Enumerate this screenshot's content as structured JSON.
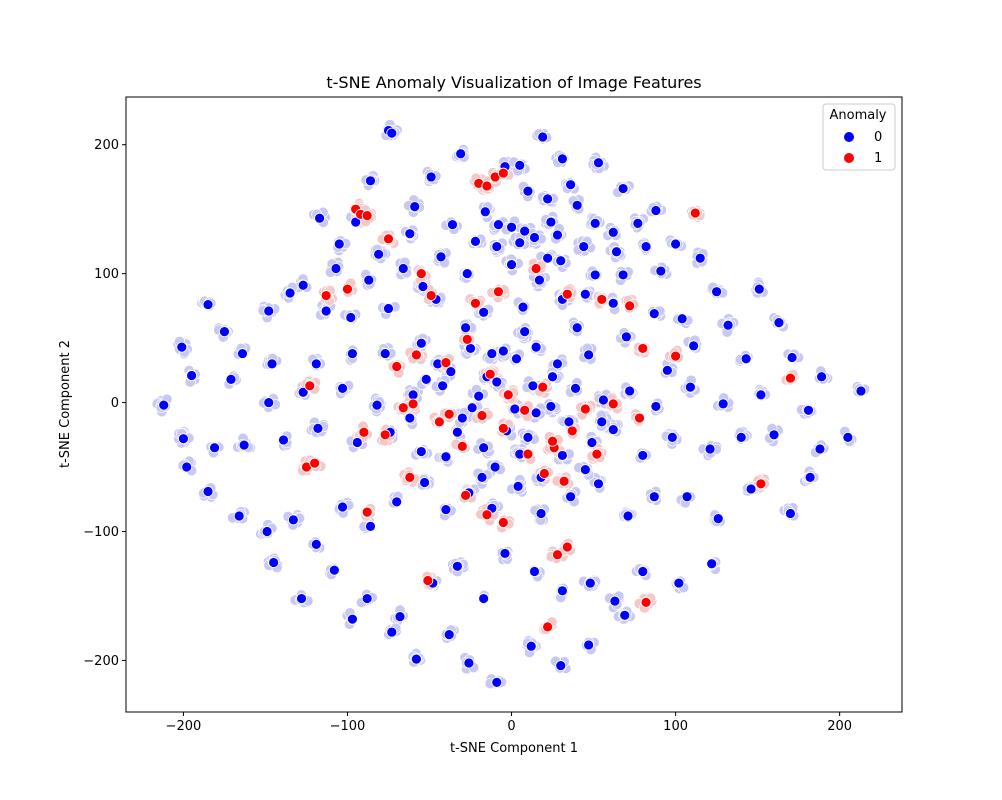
{
  "chart_data": {
    "type": "scatter",
    "title": "t-SNE Anomaly Visualization of Image Features",
    "xlabel": "t-SNE Component 1",
    "ylabel": "t-SNE Component 2",
    "xlim": [
      -235,
      238
    ],
    "ylim": [
      -240,
      237
    ],
    "xticks": [
      -200,
      -100,
      0,
      100,
      200
    ],
    "yticks": [
      -200,
      -100,
      0,
      100,
      200
    ],
    "xtick_labels": [
      "−200",
      "−100",
      "0",
      "100",
      "200"
    ],
    "ytick_labels": [
      "−200",
      "−100",
      "0",
      "100",
      "200"
    ],
    "grid": false,
    "legend": {
      "title": "Anomaly",
      "placement": "top-right",
      "entries": [
        {
          "label": "0",
          "color": "#0000ff"
        },
        {
          "label": "1",
          "color": "#ff0000"
        }
      ]
    },
    "colors": {
      "normal": "#0000ff",
      "anomaly": "#ff0000",
      "normal_halo": "#c8c8f5",
      "anomaly_halo": "#f5c8c8"
    },
    "series": [
      {
        "name": "0",
        "color": "#0000ff",
        "points": [
          [
            -75,
            211
          ],
          [
            -73,
            209
          ],
          [
            -31,
            193
          ],
          [
            19,
            206
          ],
          [
            31,
            189
          ],
          [
            53,
            186
          ],
          [
            -86,
            172
          ],
          [
            -49,
            175
          ],
          [
            -4,
            183
          ],
          [
            5,
            184
          ],
          [
            36,
            169
          ],
          [
            68,
            166
          ],
          [
            88,
            149
          ],
          [
            -59,
            152
          ],
          [
            -16,
            148
          ],
          [
            10,
            164
          ],
          [
            22,
            158
          ],
          [
            51,
            139
          ],
          [
            -117,
            143
          ],
          [
            -95,
            140
          ],
          [
            -62,
            131
          ],
          [
            -36,
            138
          ],
          [
            -22,
            125
          ],
          [
            -8,
            138
          ],
          [
            0,
            136
          ],
          [
            8,
            133
          ],
          [
            14,
            128
          ],
          [
            24,
            140
          ],
          [
            28,
            130
          ],
          [
            40,
            153
          ],
          [
            62,
            132
          ],
          [
            77,
            139
          ],
          [
            -105,
            123
          ],
          [
            -81,
            115
          ],
          [
            -43,
            113
          ],
          [
            -9,
            121
          ],
          [
            5,
            124
          ],
          [
            22,
            112
          ],
          [
            44,
            121
          ],
          [
            64,
            117
          ],
          [
            82,
            121
          ],
          [
            100,
            123
          ],
          [
            115,
            112
          ],
          [
            -127,
            91
          ],
          [
            -107,
            104
          ],
          [
            -87,
            95
          ],
          [
            -66,
            104
          ],
          [
            -54,
            90
          ],
          [
            -27,
            100
          ],
          [
            0,
            107
          ],
          [
            17,
            95
          ],
          [
            30,
            110
          ],
          [
            51,
            99
          ],
          [
            68,
            99
          ],
          [
            91,
            102
          ],
          [
            125,
            86
          ],
          [
            -185,
            76
          ],
          [
            -175,
            55
          ],
          [
            -148,
            71
          ],
          [
            -135,
            85
          ],
          [
            -113,
            71
          ],
          [
            -98,
            66
          ],
          [
            -75,
            73
          ],
          [
            -46,
            80
          ],
          [
            -17,
            70
          ],
          [
            7,
            74
          ],
          [
            31,
            80
          ],
          [
            45,
            84
          ],
          [
            62,
            77
          ],
          [
            87,
            69
          ],
          [
            104,
            65
          ],
          [
            132,
            60
          ],
          [
            151,
            88
          ],
          [
            163,
            62
          ],
          [
            -201,
            43
          ],
          [
            -164,
            38
          ],
          [
            -146,
            30
          ],
          [
            -119,
            30
          ],
          [
            -97,
            38
          ],
          [
            -77,
            38
          ],
          [
            -55,
            46
          ],
          [
            -37,
            24
          ],
          [
            -25,
            42
          ],
          [
            -12,
            38
          ],
          [
            3,
            34
          ],
          [
            15,
            43
          ],
          [
            28,
            30
          ],
          [
            47,
            37
          ],
          [
            70,
            51
          ],
          [
            95,
            25
          ],
          [
            111,
            44
          ],
          [
            143,
            34
          ],
          [
            171,
            35
          ],
          [
            189,
            20
          ],
          [
            -212,
            -2
          ],
          [
            -195,
            21
          ],
          [
            -171,
            18
          ],
          [
            -148,
            0
          ],
          [
            -127,
            8
          ],
          [
            -103,
            11
          ],
          [
            -82,
            -2
          ],
          [
            -60,
            6
          ],
          [
            -42,
            13
          ],
          [
            -24,
            -4
          ],
          [
            -9,
            16
          ],
          [
            2,
            -5
          ],
          [
            13,
            13
          ],
          [
            24,
            -3
          ],
          [
            39,
            11
          ],
          [
            56,
            2
          ],
          [
            72,
            9
          ],
          [
            88,
            -3
          ],
          [
            109,
            12
          ],
          [
            129,
            -1
          ],
          [
            152,
            6
          ],
          [
            181,
            -6
          ],
          [
            213,
            9
          ],
          [
            -200,
            -28
          ],
          [
            -181,
            -35
          ],
          [
            -163,
            -33
          ],
          [
            -139,
            -29
          ],
          [
            -118,
            -20
          ],
          [
            -94,
            -31
          ],
          [
            -74,
            -23
          ],
          [
            -55,
            -38
          ],
          [
            -33,
            -23
          ],
          [
            -17,
            -35
          ],
          [
            -3,
            -22
          ],
          [
            10,
            -27
          ],
          [
            31,
            -41
          ],
          [
            49,
            -31
          ],
          [
            62,
            -21
          ],
          [
            80,
            -41
          ],
          [
            98,
            -27
          ],
          [
            121,
            -36
          ],
          [
            140,
            -27
          ],
          [
            160,
            -25
          ],
          [
            188,
            -36
          ],
          [
            205,
            -27
          ],
          [
            -198,
            -50
          ],
          [
            -185,
            -69
          ],
          [
            -166,
            -88
          ],
          [
            -149,
            -100
          ],
          [
            -133,
            -91
          ],
          [
            -119,
            -110
          ],
          [
            -103,
            -81
          ],
          [
            -86,
            -96
          ],
          [
            -70,
            -77
          ],
          [
            -53,
            -62
          ],
          [
            -40,
            -83
          ],
          [
            -26,
            -70
          ],
          [
            -12,
            -82
          ],
          [
            4,
            -65
          ],
          [
            18,
            -86
          ],
          [
            36,
            -73
          ],
          [
            53,
            -63
          ],
          [
            71,
            -88
          ],
          [
            87,
            -73
          ],
          [
            107,
            -73
          ],
          [
            126,
            -90
          ],
          [
            146,
            -67
          ],
          [
            170,
            -86
          ],
          [
            182,
            -58
          ],
          [
            -145,
            -124
          ],
          [
            -128,
            -152
          ],
          [
            -108,
            -130
          ],
          [
            -88,
            -152
          ],
          [
            -68,
            -166
          ],
          [
            -48,
            -140
          ],
          [
            -33,
            -127
          ],
          [
            -17,
            -152
          ],
          [
            -4,
            -117
          ],
          [
            14,
            -131
          ],
          [
            31,
            -146
          ],
          [
            48,
            -140
          ],
          [
            63,
            -154
          ],
          [
            80,
            -131
          ],
          [
            102,
            -140
          ],
          [
            122,
            -125
          ],
          [
            -97,
            -168
          ],
          [
            -73,
            -178
          ],
          [
            -58,
            -199
          ],
          [
            -38,
            -180
          ],
          [
            -26,
            -202
          ],
          [
            -9,
            -217
          ],
          [
            12,
            -189
          ],
          [
            30,
            -204
          ],
          [
            47,
            -188
          ],
          [
            69,
            -165
          ],
          [
            -40,
            -42
          ],
          [
            -30,
            -12
          ],
          [
            -20,
            5
          ],
          [
            -10,
            -50
          ],
          [
            -5,
            40
          ],
          [
            5,
            -40
          ],
          [
            15,
            -8
          ],
          [
            25,
            20
          ],
          [
            35,
            -15
          ],
          [
            45,
            -52
          ],
          [
            -45,
            30
          ],
          [
            -28,
            58
          ],
          [
            -18,
            -58
          ],
          [
            8,
            55
          ],
          [
            18,
            -58
          ],
          [
            40,
            58
          ],
          [
            55,
            -15
          ],
          [
            -62,
            -12
          ],
          [
            -52,
            18
          ],
          [
            -15,
            20
          ]
        ]
      },
      {
        "name": "1",
        "color": "#ff0000",
        "points": [
          [
            -95,
            150
          ],
          [
            -92,
            146
          ],
          [
            -88,
            145
          ],
          [
            -20,
            170
          ],
          [
            -15,
            168
          ],
          [
            -10,
            175
          ],
          [
            -5,
            178
          ],
          [
            -75,
            127
          ],
          [
            -55,
            100
          ],
          [
            -49,
            83
          ],
          [
            -22,
            77
          ],
          [
            -8,
            86
          ],
          [
            15,
            104
          ],
          [
            34,
            84
          ],
          [
            55,
            80
          ],
          [
            72,
            75
          ],
          [
            112,
            147
          ],
          [
            -100,
            88
          ],
          [
            -113,
            83
          ],
          [
            -123,
            13
          ],
          [
            -70,
            28
          ],
          [
            -58,
            37
          ],
          [
            -40,
            31
          ],
          [
            -27,
            49
          ],
          [
            -13,
            22
          ],
          [
            -2,
            6
          ],
          [
            19,
            12
          ],
          [
            26,
            -35
          ],
          [
            37,
            -22
          ],
          [
            45,
            -5
          ],
          [
            62,
            -1
          ],
          [
            78,
            -12
          ],
          [
            80,
            42
          ],
          [
            100,
            36
          ],
          [
            -90,
            -23
          ],
          [
            -77,
            -25
          ],
          [
            -60,
            -1
          ],
          [
            -44,
            -15
          ],
          [
            -30,
            -34
          ],
          [
            -18,
            -10
          ],
          [
            -5,
            -20
          ],
          [
            8,
            -6
          ],
          [
            20,
            -55
          ],
          [
            32,
            -61
          ],
          [
            52,
            -40
          ],
          [
            170,
            19
          ],
          [
            152,
            -63
          ],
          [
            -125,
            -50
          ],
          [
            -88,
            -85
          ],
          [
            -62,
            -58
          ],
          [
            -28,
            -72
          ],
          [
            -15,
            -87
          ],
          [
            -5,
            -93
          ],
          [
            22,
            -174
          ],
          [
            28,
            -118
          ],
          [
            34,
            -112
          ],
          [
            -51,
            -138
          ],
          [
            82,
            -155
          ],
          [
            -120,
            -47
          ],
          [
            -66,
            -4
          ],
          [
            -38,
            -9
          ],
          [
            25,
            -30
          ],
          [
            10,
            -40
          ]
        ]
      }
    ]
  }
}
